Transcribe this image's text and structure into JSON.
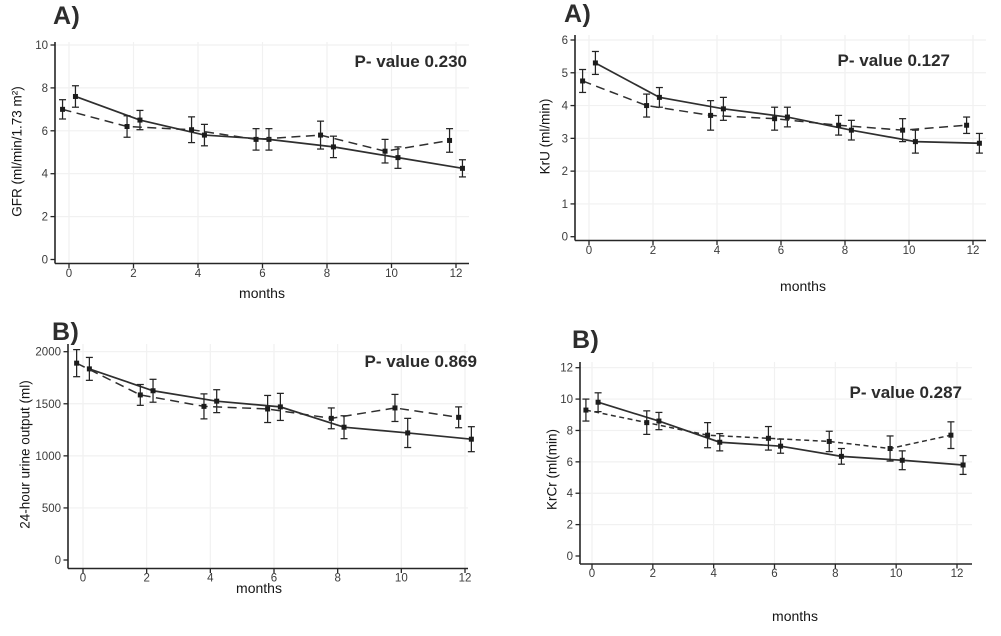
{
  "figure": {
    "background": "#ffffff",
    "ink_color": "#2f2f2f",
    "grid_color": "#f1f1f1",
    "tick_label_color": "#3c3c3c"
  },
  "chart_data": [
    {
      "id": "gfr",
      "type": "line",
      "panel_label": "A)",
      "p_value": "P- value 0.230",
      "xlabel": "months",
      "ylabel": "GFR (ml/min/1.73 m²)",
      "xlim": [
        -0.7,
        13
      ],
      "ylim": [
        0,
        10
      ],
      "xticks": [
        0,
        2,
        4,
        6,
        8,
        10,
        12
      ],
      "yticks": [
        0,
        2,
        4,
        6,
        8,
        10
      ],
      "grid": true,
      "legend": "none",
      "series": [
        {
          "name": "solid-line-group",
          "style": "solid",
          "x": [
            0.2,
            2.2,
            4.2,
            6.2,
            8.2,
            10.2,
            12.2
          ],
          "y": [
            7.6,
            6.5,
            5.8,
            5.6,
            5.25,
            4.75,
            4.25
          ],
          "err": [
            0.5,
            0.45,
            0.5,
            0.5,
            0.5,
            0.5,
            0.4
          ]
        },
        {
          "name": "dashed-line-group",
          "style": "dashed",
          "x": [
            -0.2,
            1.8,
            3.8,
            5.8,
            7.8,
            9.8,
            11.8
          ],
          "y": [
            7.0,
            6.2,
            6.05,
            5.6,
            5.8,
            5.05,
            5.55
          ],
          "err": [
            0.45,
            0.5,
            0.6,
            0.5,
            0.65,
            0.55,
            0.55
          ]
        }
      ]
    },
    {
      "id": "kru",
      "type": "line",
      "panel_label": "A)",
      "p_value": "P- value 0.127",
      "xlabel": "months",
      "ylabel": "KrU (ml/min)",
      "xlim": [
        -0.7,
        13
      ],
      "ylim": [
        0,
        6
      ],
      "xticks": [
        0,
        2,
        4,
        6,
        8,
        10,
        12
      ],
      "yticks": [
        0,
        1,
        2,
        3,
        4,
        5,
        6
      ],
      "grid": true,
      "legend": "none",
      "series": [
        {
          "name": "solid-line-group",
          "style": "solid",
          "x": [
            0.2,
            2.2,
            4.2,
            6.2,
            8.2,
            10.2,
            12.2
          ],
          "y": [
            5.3,
            4.25,
            3.9,
            3.65,
            3.25,
            2.9,
            2.85
          ],
          "err": [
            0.35,
            0.3,
            0.35,
            0.3,
            0.3,
            0.35,
            0.3
          ]
        },
        {
          "name": "dashed-line-group",
          "style": "dashed",
          "x": [
            -0.2,
            1.8,
            3.8,
            5.8,
            7.8,
            9.8,
            11.8
          ],
          "y": [
            4.75,
            4.0,
            3.7,
            3.6,
            3.4,
            3.25,
            3.4
          ],
          "err": [
            0.35,
            0.35,
            0.45,
            0.35,
            0.3,
            0.35,
            0.25
          ]
        }
      ]
    },
    {
      "id": "urine-output",
      "type": "line",
      "panel_label": "B)",
      "p_value": "P- value 0.869",
      "xlabel": "months",
      "ylabel": "24-hour urine output (ml)",
      "xlim": [
        -0.7,
        13
      ],
      "ylim": [
        0,
        2000
      ],
      "xticks": [
        0,
        2,
        4,
        6,
        8,
        10,
        12
      ],
      "yticks": [
        0,
        500,
        1000,
        1500,
        2000
      ],
      "grid": true,
      "legend": "none",
      "series": [
        {
          "name": "solid-line-group",
          "style": "solid",
          "x": [
            0.2,
            2.2,
            4.2,
            6.2,
            8.2,
            10.2,
            12.2
          ],
          "y": [
            1835,
            1625,
            1525,
            1470,
            1275,
            1220,
            1160
          ],
          "err": [
            110,
            110,
            110,
            130,
            110,
            140,
            120
          ]
        },
        {
          "name": "dashed-line-group",
          "style": "dashed",
          "x": [
            -0.2,
            1.8,
            3.8,
            5.8,
            7.8,
            9.8,
            11.8
          ],
          "y": [
            1890,
            1585,
            1475,
            1450,
            1360,
            1460,
            1370
          ],
          "err": [
            130,
            100,
            120,
            130,
            100,
            130,
            100
          ]
        }
      ]
    },
    {
      "id": "krcr",
      "type": "line",
      "panel_label": "B)",
      "p_value": "P- value 0.287",
      "xlabel": "months",
      "ylabel": "KrCr (ml(min)",
      "xlim": [
        -0.7,
        13
      ],
      "ylim": [
        0,
        12
      ],
      "xticks": [
        0,
        2,
        4,
        6,
        8,
        10,
        12
      ],
      "yticks": [
        0,
        2,
        4,
        6,
        8,
        10,
        12
      ],
      "grid": true,
      "legend": "none",
      "series": [
        {
          "name": "solid-line-group",
          "style": "solid",
          "x": [
            0.2,
            2.2,
            4.2,
            6.2,
            8.2,
            10.2,
            12.2
          ],
          "y": [
            9.8,
            8.6,
            7.25,
            7.0,
            6.35,
            6.1,
            5.8
          ],
          "err": [
            0.6,
            0.55,
            0.55,
            0.45,
            0.5,
            0.6,
            0.6
          ]
        },
        {
          "name": "dashed-line-group",
          "style": "dashed",
          "x": [
            -0.2,
            1.8,
            3.8,
            5.8,
            7.8,
            9.8,
            11.8
          ],
          "y": [
            9.3,
            8.5,
            7.7,
            7.5,
            7.3,
            6.85,
            7.7
          ],
          "err": [
            0.7,
            0.75,
            0.8,
            0.75,
            0.65,
            0.8,
            0.85
          ]
        }
      ]
    }
  ]
}
